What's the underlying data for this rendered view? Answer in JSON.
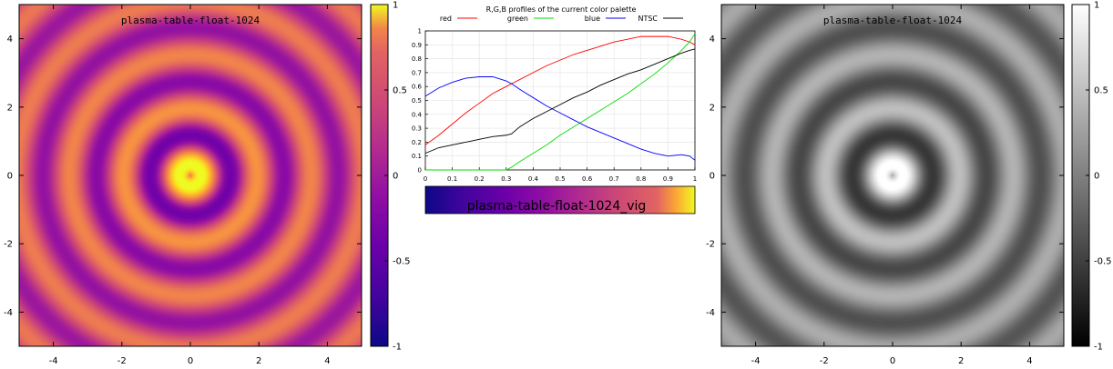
{
  "chart_data": [
    {
      "type": "heatmap",
      "title": "plasma-table-float-1024",
      "palette": "plasma",
      "function": "radial rings",
      "xlim": [
        -5,
        5
      ],
      "ylim": [
        -5,
        5
      ],
      "zlim": [
        -1,
        1
      ],
      "xticks": [
        "-4",
        "-2",
        "0",
        "2",
        "4"
      ],
      "yticks": [
        "-4",
        "-2",
        "0",
        "2",
        "4"
      ],
      "cbticks": [
        "-1",
        "-0.5",
        "0",
        "0.5",
        "1"
      ],
      "grid": false
    },
    {
      "type": "line",
      "title": "R,G,B profiles of the current color palette",
      "xlim": [
        0,
        1
      ],
      "ylim": [
        0,
        1
      ],
      "xticks": [
        "0",
        "0.1",
        "0.2",
        "0.3",
        "0.4",
        "0.5",
        "0.6",
        "0.7",
        "0.8",
        "0.9",
        "1"
      ],
      "yticks": [
        "0",
        "0.1",
        "0.2",
        "0.3",
        "0.4",
        "0.5",
        "0.6",
        "0.7",
        "0.8",
        "0.9",
        "1"
      ],
      "legend_position": "top",
      "grid": true,
      "x": [
        0,
        0.05,
        0.1,
        0.15,
        0.2,
        0.25,
        0.3,
        0.32,
        0.35,
        0.4,
        0.45,
        0.5,
        0.55,
        0.6,
        0.65,
        0.7,
        0.75,
        0.8,
        0.85,
        0.9,
        0.95,
        0.98,
        1.0
      ],
      "series": [
        {
          "name": "red",
          "color": "#ff0000",
          "values": [
            0.18,
            0.25,
            0.33,
            0.41,
            0.48,
            0.55,
            0.6,
            0.62,
            0.65,
            0.7,
            0.75,
            0.79,
            0.83,
            0.86,
            0.89,
            0.92,
            0.94,
            0.96,
            0.96,
            0.96,
            0.94,
            0.92,
            0.9
          ]
        },
        {
          "name": "green",
          "color": "#00dd00",
          "values": [
            0.0,
            0.0,
            0.0,
            0.0,
            0.0,
            0.0,
            0.0,
            0.02,
            0.06,
            0.12,
            0.18,
            0.25,
            0.31,
            0.37,
            0.43,
            0.49,
            0.55,
            0.62,
            0.69,
            0.77,
            0.86,
            0.92,
            0.98
          ]
        },
        {
          "name": "blue",
          "color": "#0000ff",
          "values": [
            0.53,
            0.59,
            0.63,
            0.66,
            0.67,
            0.67,
            0.64,
            0.62,
            0.58,
            0.52,
            0.46,
            0.41,
            0.36,
            0.31,
            0.27,
            0.23,
            0.19,
            0.15,
            0.12,
            0.1,
            0.11,
            0.1,
            0.07
          ]
        },
        {
          "name": "NTSC",
          "color": "#000000",
          "values": [
            0.12,
            0.16,
            0.18,
            0.2,
            0.22,
            0.24,
            0.25,
            0.26,
            0.31,
            0.37,
            0.42,
            0.47,
            0.52,
            0.56,
            0.61,
            0.65,
            0.69,
            0.72,
            0.76,
            0.8,
            0.84,
            0.86,
            0.87
          ]
        }
      ],
      "colorbar_label": "plasma-table-float-1024_vig"
    },
    {
      "type": "heatmap",
      "title": "plasma-table-float-1024",
      "palette": "gray",
      "function": "radial rings",
      "xlim": [
        -5,
        5
      ],
      "ylim": [
        -5,
        5
      ],
      "zlim": [
        -1,
        1
      ],
      "xticks": [
        "-4",
        "-2",
        "0",
        "2",
        "4"
      ],
      "yticks": [
        "-4",
        "-2",
        "0",
        "2",
        "4"
      ],
      "cbticks": [
        "-1",
        "-0.5",
        "0",
        "0.5",
        "1"
      ],
      "grid": false
    }
  ]
}
